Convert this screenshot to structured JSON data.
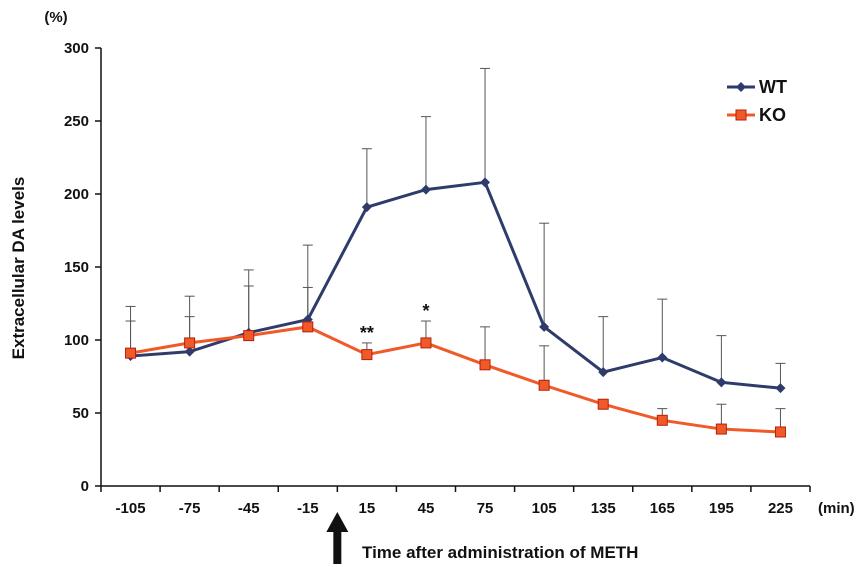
{
  "chart_data": {
    "type": "line",
    "title": "",
    "xlabel": "Time after administration of METH",
    "ylabel": "Extracellular DA levels",
    "x_unit": "(min)",
    "y_unit": "(%)",
    "categories": [
      "-105",
      "-75",
      "-45",
      "-15",
      "15",
      "45",
      "75",
      "105",
      "135",
      "165",
      "195",
      "225"
    ],
    "ylim": [
      0,
      300
    ],
    "yticks": [
      "0",
      "50",
      "100",
      "150",
      "200",
      "250",
      "300"
    ],
    "grid": false,
    "legend_position": "top-right",
    "series": [
      {
        "name": "WT",
        "color": "#2e3b6b",
        "marker": "diamond",
        "values": [
          89,
          92,
          105,
          114,
          191,
          203,
          208,
          109,
          78,
          88,
          71,
          67
        ],
        "error_upper": [
          34,
          38,
          43,
          51,
          40,
          50,
          78,
          71,
          38,
          40,
          32,
          17
        ]
      },
      {
        "name": "KO",
        "color": "#f05a28",
        "marker": "square",
        "values": [
          91,
          98,
          103,
          109,
          90,
          98,
          83,
          69,
          56,
          45,
          39,
          37
        ],
        "error_upper": [
          22,
          18,
          34,
          27,
          8,
          15,
          26,
          27,
          0,
          8,
          17,
          16
        ]
      }
    ],
    "annotations": [
      {
        "text": "**",
        "x": "15"
      },
      {
        "text": "*",
        "x": "45"
      }
    ],
    "arrow_at": "0",
    "arrow_color": "#111111"
  }
}
